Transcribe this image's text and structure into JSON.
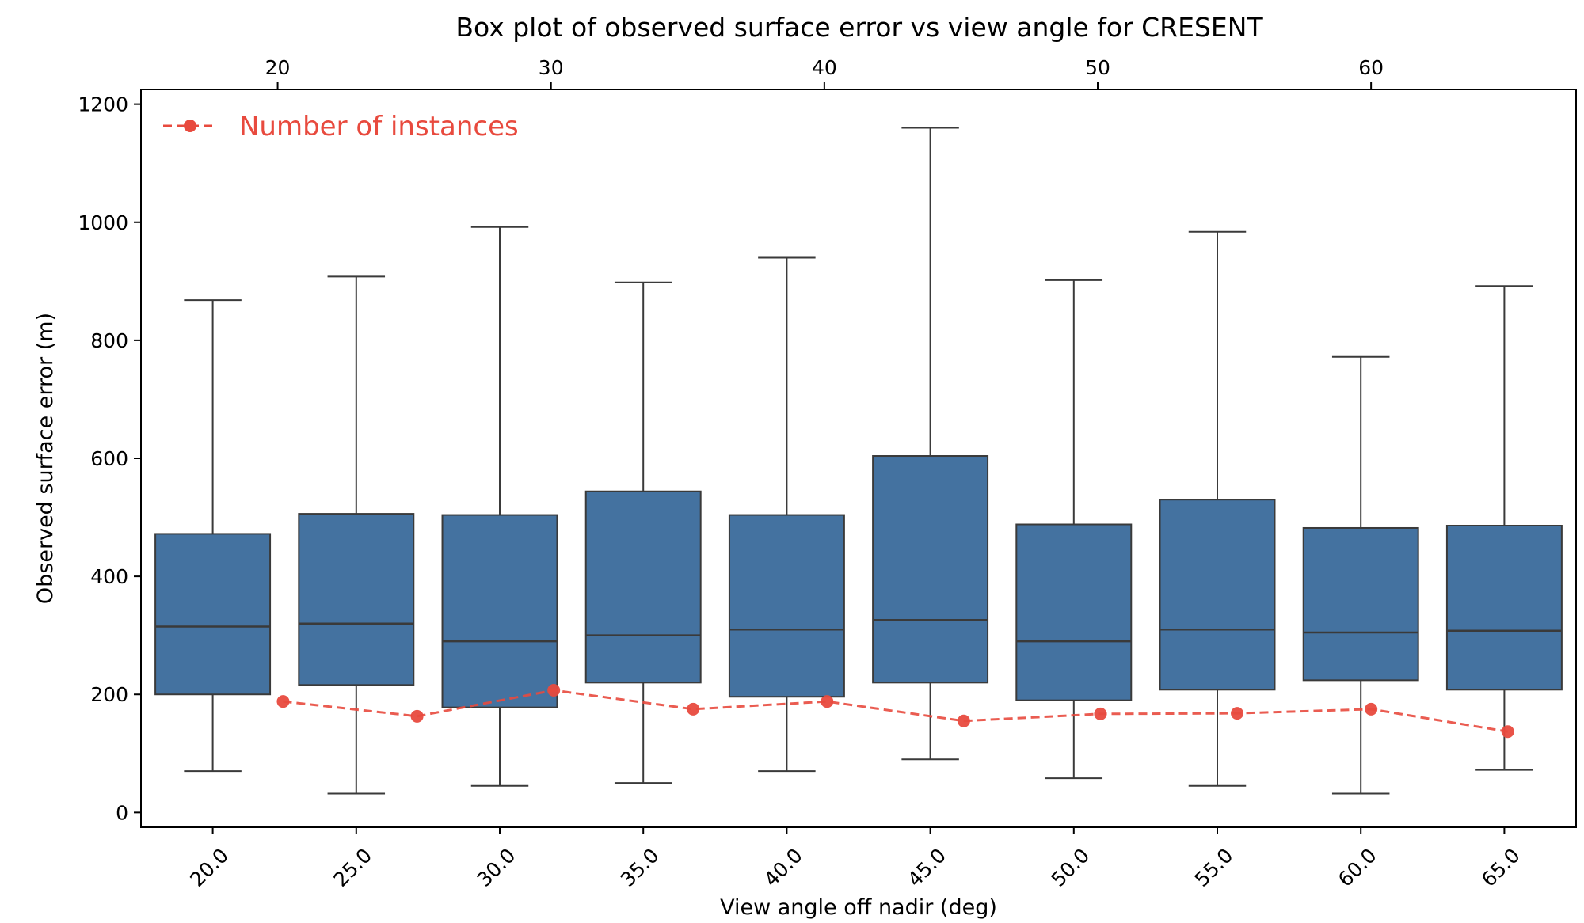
{
  "chart_data": {
    "type": "box",
    "title": "Box plot of observed surface error vs view angle for CRESENT",
    "xlabel": "View angle off nadir (deg)",
    "ylabel": "Observed surface error (m)",
    "ylim": [
      -25,
      1225
    ],
    "yticks": [
      0,
      200,
      400,
      600,
      800,
      1000,
      1200
    ],
    "top_axis": {
      "xlim": [
        15,
        67.5
      ],
      "ticks": [
        20,
        30,
        40,
        50,
        60
      ],
      "tick_labels": [
        "20",
        "30",
        "40",
        "50",
        "60"
      ]
    },
    "categories": [
      "20.0",
      "25.0",
      "30.0",
      "35.0",
      "40.0",
      "45.0",
      "50.0",
      "55.0",
      "60.0",
      "65.0"
    ],
    "box_color": "#4472a0",
    "line_color": "#e84a3e",
    "series": [
      {
        "kind": "box",
        "boxes": [
          {
            "whisker_low": 70,
            "q1": 200,
            "median": 315,
            "q3": 472,
            "whisker_high": 868
          },
          {
            "whisker_low": 32,
            "q1": 216,
            "median": 320,
            "q3": 506,
            "whisker_high": 908
          },
          {
            "whisker_low": 45,
            "q1": 178,
            "median": 290,
            "q3": 504,
            "whisker_high": 992
          },
          {
            "whisker_low": 50,
            "q1": 220,
            "median": 300,
            "q3": 544,
            "whisker_high": 898
          },
          {
            "whisker_low": 70,
            "q1": 196,
            "median": 310,
            "q3": 504,
            "whisker_high": 940
          },
          {
            "whisker_low": 90,
            "q1": 220,
            "median": 326,
            "q3": 604,
            "whisker_high": 1160
          },
          {
            "whisker_low": 58,
            "q1": 190,
            "median": 290,
            "q3": 488,
            "whisker_high": 902
          },
          {
            "whisker_low": 45,
            "q1": 208,
            "median": 310,
            "q3": 530,
            "whisker_high": 984
          },
          {
            "whisker_low": 32,
            "q1": 224,
            "median": 305,
            "q3": 482,
            "whisker_high": 772
          },
          {
            "whisker_low": 72,
            "q1": 208,
            "median": 308,
            "q3": 486,
            "whisker_high": 892
          }
        ]
      },
      {
        "kind": "line",
        "name": "Number of instances",
        "top_x": [
          20.2,
          25.1,
          30.1,
          35.2,
          40.1,
          45.1,
          50.1,
          55.1,
          60.0,
          65.0
        ],
        "values": [
          188,
          163,
          207,
          175,
          188,
          155,
          167,
          168,
          175,
          137
        ]
      }
    ],
    "legend": {
      "position": "top-left",
      "text": "Number of instances"
    },
    "grid": false
  }
}
